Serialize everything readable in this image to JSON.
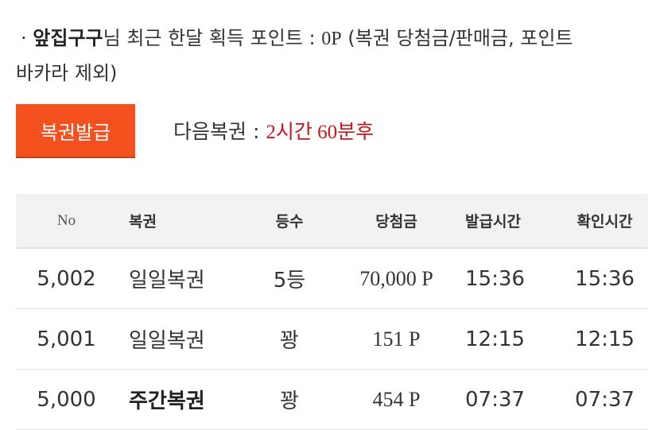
{
  "summary": {
    "bullet": "·",
    "username": "앞집구구",
    "text_before_value": "님 최근 한달 획득 포인트 : ",
    "points": "0P",
    "note_line1": " (복권 당첨금/판매금, 포인트",
    "note_line2": "바카라 제외)"
  },
  "issue_button": "복권발급",
  "next_ticket": {
    "label": "다음복권 : ",
    "value": "2시간 60분후"
  },
  "colors": {
    "accent": "#f4511e",
    "highlight": "#c8161d"
  },
  "table": {
    "headers": [
      "No",
      "복권",
      "등수",
      "당첨금",
      "발급시간",
      "확인시간"
    ],
    "rows": [
      {
        "no": "5,002",
        "type": "일일복권",
        "rank": "5등",
        "prize": "70,000 P",
        "issued": "15:36",
        "checked": "15:36",
        "bold": false
      },
      {
        "no": "5,001",
        "type": "일일복권",
        "rank": "꽝",
        "prize": "151 P",
        "issued": "12:15",
        "checked": "12:15",
        "bold": false
      },
      {
        "no": "5,000",
        "type": "주간복권",
        "rank": "꽝",
        "prize": "454 P",
        "issued": "07:37",
        "checked": "07:37",
        "bold": true
      }
    ]
  }
}
